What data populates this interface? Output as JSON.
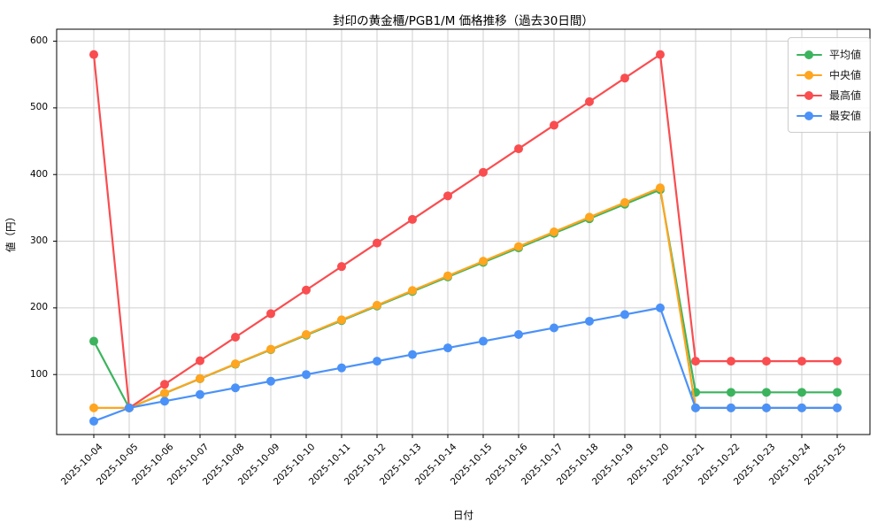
{
  "chart_data": {
    "type": "line",
    "title": "封印の黄金櫃/PGB1/M 価格推移（過去30日間）",
    "xlabel": "日付",
    "ylabel": "値（円）",
    "x": [
      "2025-10-04",
      "2025-10-05",
      "2025-10-06",
      "2025-10-07",
      "2025-10-08",
      "2025-10-09",
      "2025-10-10",
      "2025-10-11",
      "2025-10-12",
      "2025-10-13",
      "2025-10-14",
      "2025-10-15",
      "2025-10-16",
      "2025-10-17",
      "2025-10-18",
      "2025-10-19",
      "2025-10-20",
      "2025-10-21",
      "2025-10-22",
      "2025-10-23",
      "2025-10-24",
      "2025-10-25"
    ],
    "series": [
      {
        "name": "平均値",
        "color": "#3cb45e",
        "values": [
          150,
          50,
          71.8,
          93.7,
          115.5,
          137.3,
          159.1,
          180.9,
          202.8,
          224.6,
          246.4,
          268.2,
          290,
          311.9,
          333.7,
          355.5,
          377.3,
          73.3,
          73.3,
          73.3,
          73.3,
          73.3
        ]
      },
      {
        "name": "中央値",
        "color": "#ffa51f",
        "values": [
          50,
          50,
          72,
          94,
          116,
          138,
          160,
          182,
          204,
          226,
          248,
          270,
          292,
          314,
          336,
          358,
          380,
          50,
          50,
          50,
          50,
          50
        ]
      },
      {
        "name": "最高値",
        "color": "#f94d50",
        "values": [
          580,
          50,
          85.3,
          120.7,
          156,
          191.3,
          226.7,
          262,
          297.3,
          332.7,
          368,
          403.3,
          438.7,
          474,
          509.3,
          544.7,
          580,
          120,
          120,
          120,
          120,
          120
        ]
      },
      {
        "name": "最安値",
        "color": "#4b92f8",
        "values": [
          30,
          50,
          60,
          70,
          80,
          90,
          100,
          110,
          120,
          130,
          140,
          150,
          160,
          170,
          180,
          190,
          200,
          50,
          50,
          50,
          50,
          50
        ]
      }
    ],
    "yticks": [
      100,
      200,
      300,
      400,
      500,
      600
    ],
    "ylim": [
      10,
      618
    ],
    "grid": true,
    "grid_color": "#cfcfcf",
    "legend_position": "upper right",
    "marker": "circle"
  }
}
